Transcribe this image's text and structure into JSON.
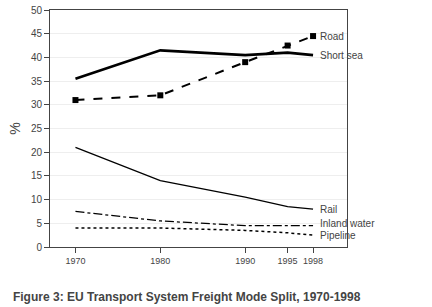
{
  "chart_data": {
    "type": "line",
    "title": "Figure 3: EU Transport System Freight Mode Split, 1970-1998",
    "y_label": "%",
    "x": [
      1970,
      1980,
      1990,
      1995,
      1998
    ],
    "series": [
      {
        "name": "Road",
        "color": "#000000",
        "line_style": "dashed",
        "marker": "square",
        "values": [
          31.0,
          32.0,
          39.0,
          42.5,
          44.5
        ]
      },
      {
        "name": "Short sea",
        "color": "#000000",
        "line_style": "solid",
        "values": [
          35.5,
          41.5,
          40.5,
          41.0,
          40.5
        ]
      },
      {
        "name": "Rail",
        "color": "#000000",
        "line_style": "solid",
        "values": [
          21.0,
          14.0,
          10.5,
          8.5,
          8.0
        ]
      },
      {
        "name": "Inland water",
        "color": "#000000",
        "line_style": "dashdot",
        "values": [
          7.5,
          5.5,
          4.5,
          4.5,
          4.5
        ]
      },
      {
        "name": "Pipeline",
        "color": "#000000",
        "line_style": "dotted",
        "values": [
          4.0,
          4.0,
          3.5,
          3.0,
          2.5
        ]
      }
    ],
    "xlim": [
      1967,
      2002
    ],
    "ylim": [
      0,
      50
    ],
    "xticks": [
      1970,
      1980,
      1990,
      1995,
      1998
    ],
    "yticks": [
      0,
      5,
      10,
      15,
      20,
      25,
      30,
      35,
      40,
      45,
      50
    ],
    "grid": "y"
  }
}
